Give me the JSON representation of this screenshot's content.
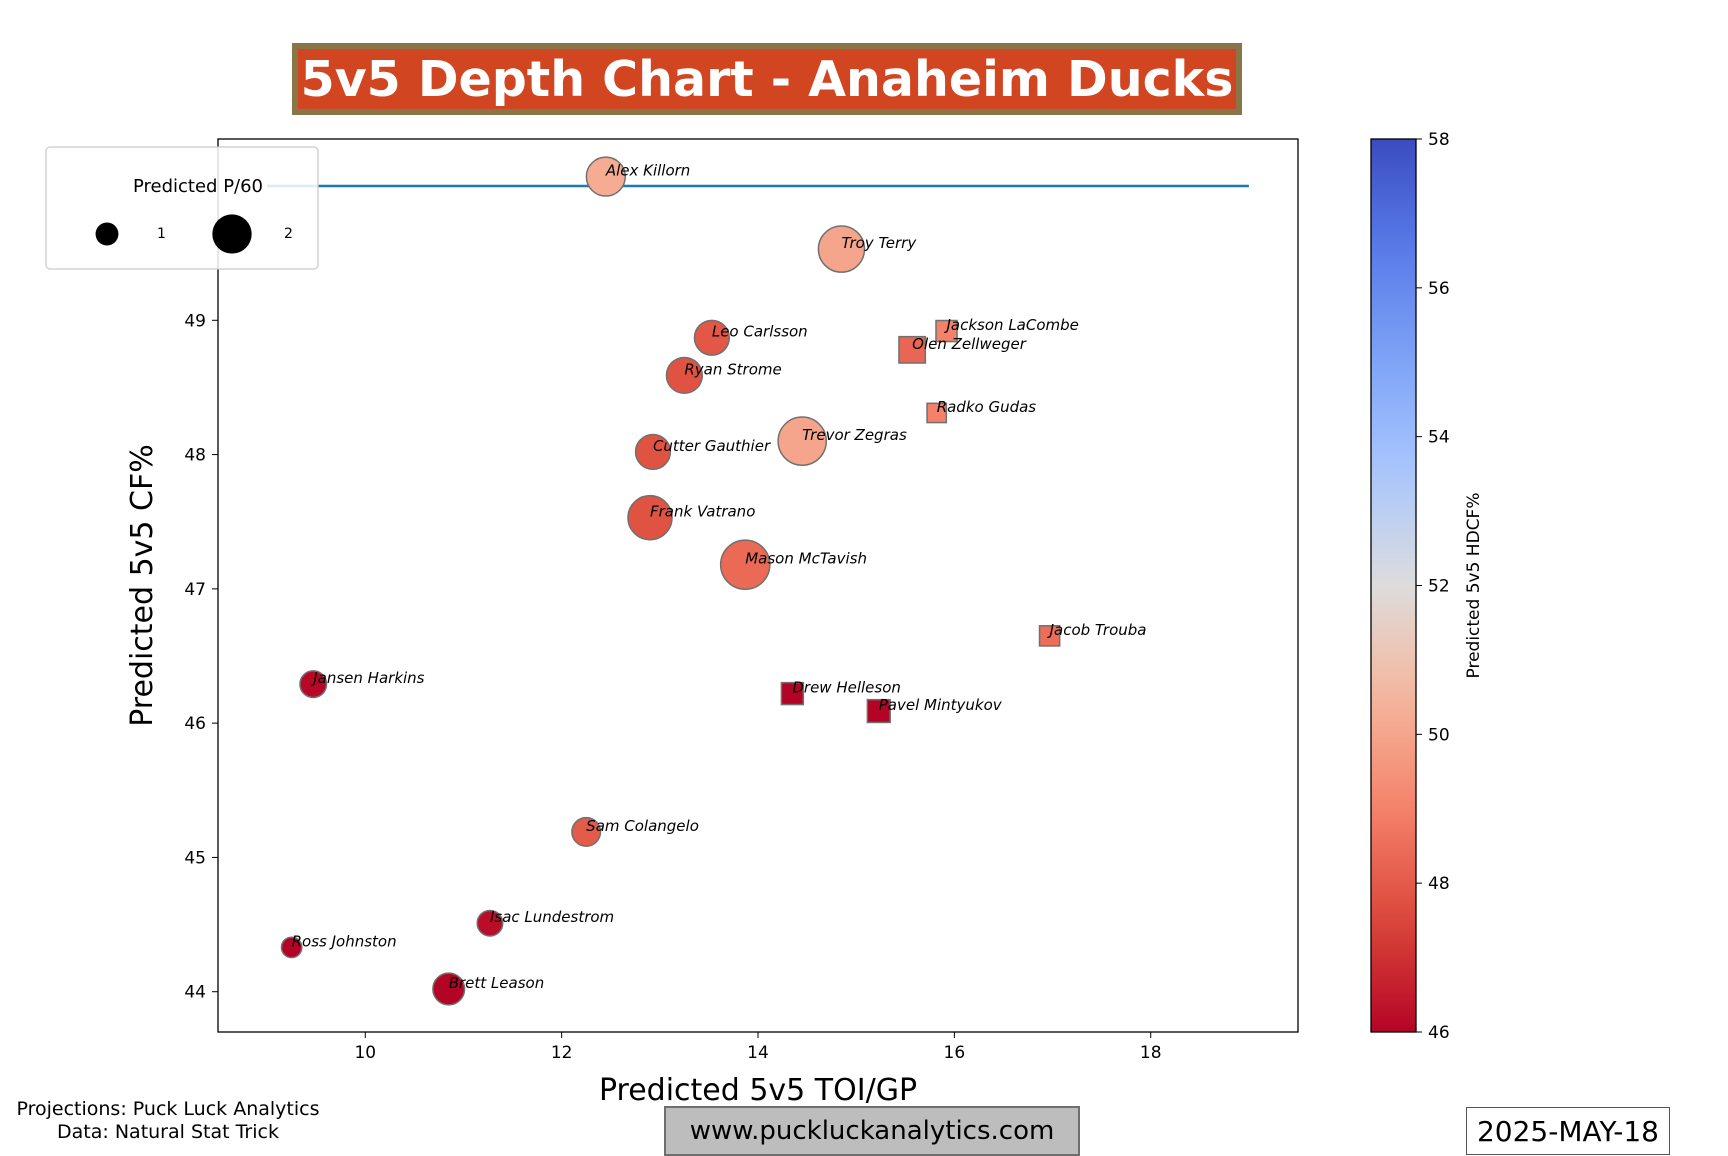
{
  "title": "5v5 Depth Chart - Anaheim Ducks",
  "footer": {
    "projections": "Projections: Puck Luck Analytics",
    "data_source": "Data: Natural Stat Trick",
    "website": "www.puckluckanalytics.com",
    "date": "2025-MAY-18"
  },
  "colors": {
    "title_bg": "#d14520",
    "title_border": "#8a7548",
    "hline": "#1f77b4",
    "marker_edge": "#707070"
  },
  "chart_data": {
    "type": "scatter",
    "xlabel": "Predicted 5v5 TOI/GP",
    "ylabel": "Predicted 5v5 CF%",
    "xlim": [
      8.5,
      19.5
    ],
    "ylim": [
      43.7,
      50.35
    ],
    "xticks": [
      10,
      12,
      14,
      16,
      18
    ],
    "yticks": [
      44,
      45,
      46,
      47,
      48,
      49
    ],
    "hline": {
      "y": 50.0,
      "x_start": 9.0,
      "x_end": 19.0
    },
    "legend": {
      "title": "Predicted P/60",
      "position": "upper-left",
      "entries": [
        1,
        2
      ]
    },
    "colorbar": {
      "label": "Predicted 5v5 HDCF%",
      "min": 46,
      "max": 58,
      "ticks": [
        46,
        48,
        50,
        52,
        54,
        56,
        58
      ],
      "colormap": "coolwarm_r"
    },
    "points": [
      {
        "name": "Alex Killorn",
        "toi": 12.45,
        "cf": 50.07,
        "p60": 1.5,
        "hdcf": 50.2,
        "pos": "F"
      },
      {
        "name": "Troy Terry",
        "toi": 14.85,
        "cf": 49.53,
        "p60": 1.85,
        "hdcf": 50.0,
        "pos": "F"
      },
      {
        "name": "Leo Carlsson",
        "toi": 13.53,
        "cf": 48.87,
        "p60": 1.3,
        "hdcf": 47.9,
        "pos": "F"
      },
      {
        "name": "Jackson LaCombe",
        "toi": 15.92,
        "cf": 48.92,
        "p60": 0.8,
        "hdcf": 49.0,
        "pos": "D"
      },
      {
        "name": "Olen Zellweger",
        "toi": 15.57,
        "cf": 48.78,
        "p60": 1.1,
        "hdcf": 48.3,
        "pos": "D"
      },
      {
        "name": "Ryan Strome",
        "toi": 13.25,
        "cf": 48.59,
        "p60": 1.35,
        "hdcf": 47.8,
        "pos": "F"
      },
      {
        "name": "Radko Gudas",
        "toi": 15.82,
        "cf": 48.31,
        "p60": 0.7,
        "hdcf": 49.0,
        "pos": "D"
      },
      {
        "name": "Trevor Zegras",
        "toi": 14.45,
        "cf": 48.1,
        "p60": 1.95,
        "hdcf": 50.0,
        "pos": "F"
      },
      {
        "name": "Cutter Gauthier",
        "toi": 12.93,
        "cf": 48.02,
        "p60": 1.3,
        "hdcf": 47.8,
        "pos": "F"
      },
      {
        "name": "Frank Vatrano",
        "toi": 12.9,
        "cf": 47.53,
        "p60": 1.75,
        "hdcf": 47.8,
        "pos": "F"
      },
      {
        "name": "Mason McTavish",
        "toi": 13.87,
        "cf": 47.18,
        "p60": 2.0,
        "hdcf": 48.4,
        "pos": "F"
      },
      {
        "name": "Jacob Trouba",
        "toi": 16.97,
        "cf": 46.65,
        "p60": 0.75,
        "hdcf": 48.5,
        "pos": "D"
      },
      {
        "name": "Jansen Harkins",
        "toi": 9.47,
        "cf": 46.29,
        "p60": 0.9,
        "hdcf": 46.1,
        "pos": "F"
      },
      {
        "name": "Drew Helleson",
        "toi": 14.35,
        "cf": 46.22,
        "p60": 0.85,
        "hdcf": 46.0,
        "pos": "D"
      },
      {
        "name": "Pavel Mintyukov",
        "toi": 15.23,
        "cf": 46.09,
        "p60": 0.9,
        "hdcf": 46.0,
        "pos": "D"
      },
      {
        "name": "Sam Colangelo",
        "toi": 12.25,
        "cf": 45.19,
        "p60": 1.0,
        "hdcf": 48.0,
        "pos": "F"
      },
      {
        "name": "Isac Lundestrom",
        "toi": 11.27,
        "cf": 44.51,
        "p60": 0.85,
        "hdcf": 46.2,
        "pos": "F"
      },
      {
        "name": "Ross Johnston",
        "toi": 9.25,
        "cf": 44.33,
        "p60": 0.6,
        "hdcf": 46.0,
        "pos": "F"
      },
      {
        "name": "Brett Leason",
        "toi": 10.85,
        "cf": 44.02,
        "p60": 1.15,
        "hdcf": 46.0,
        "pos": "F"
      }
    ]
  }
}
